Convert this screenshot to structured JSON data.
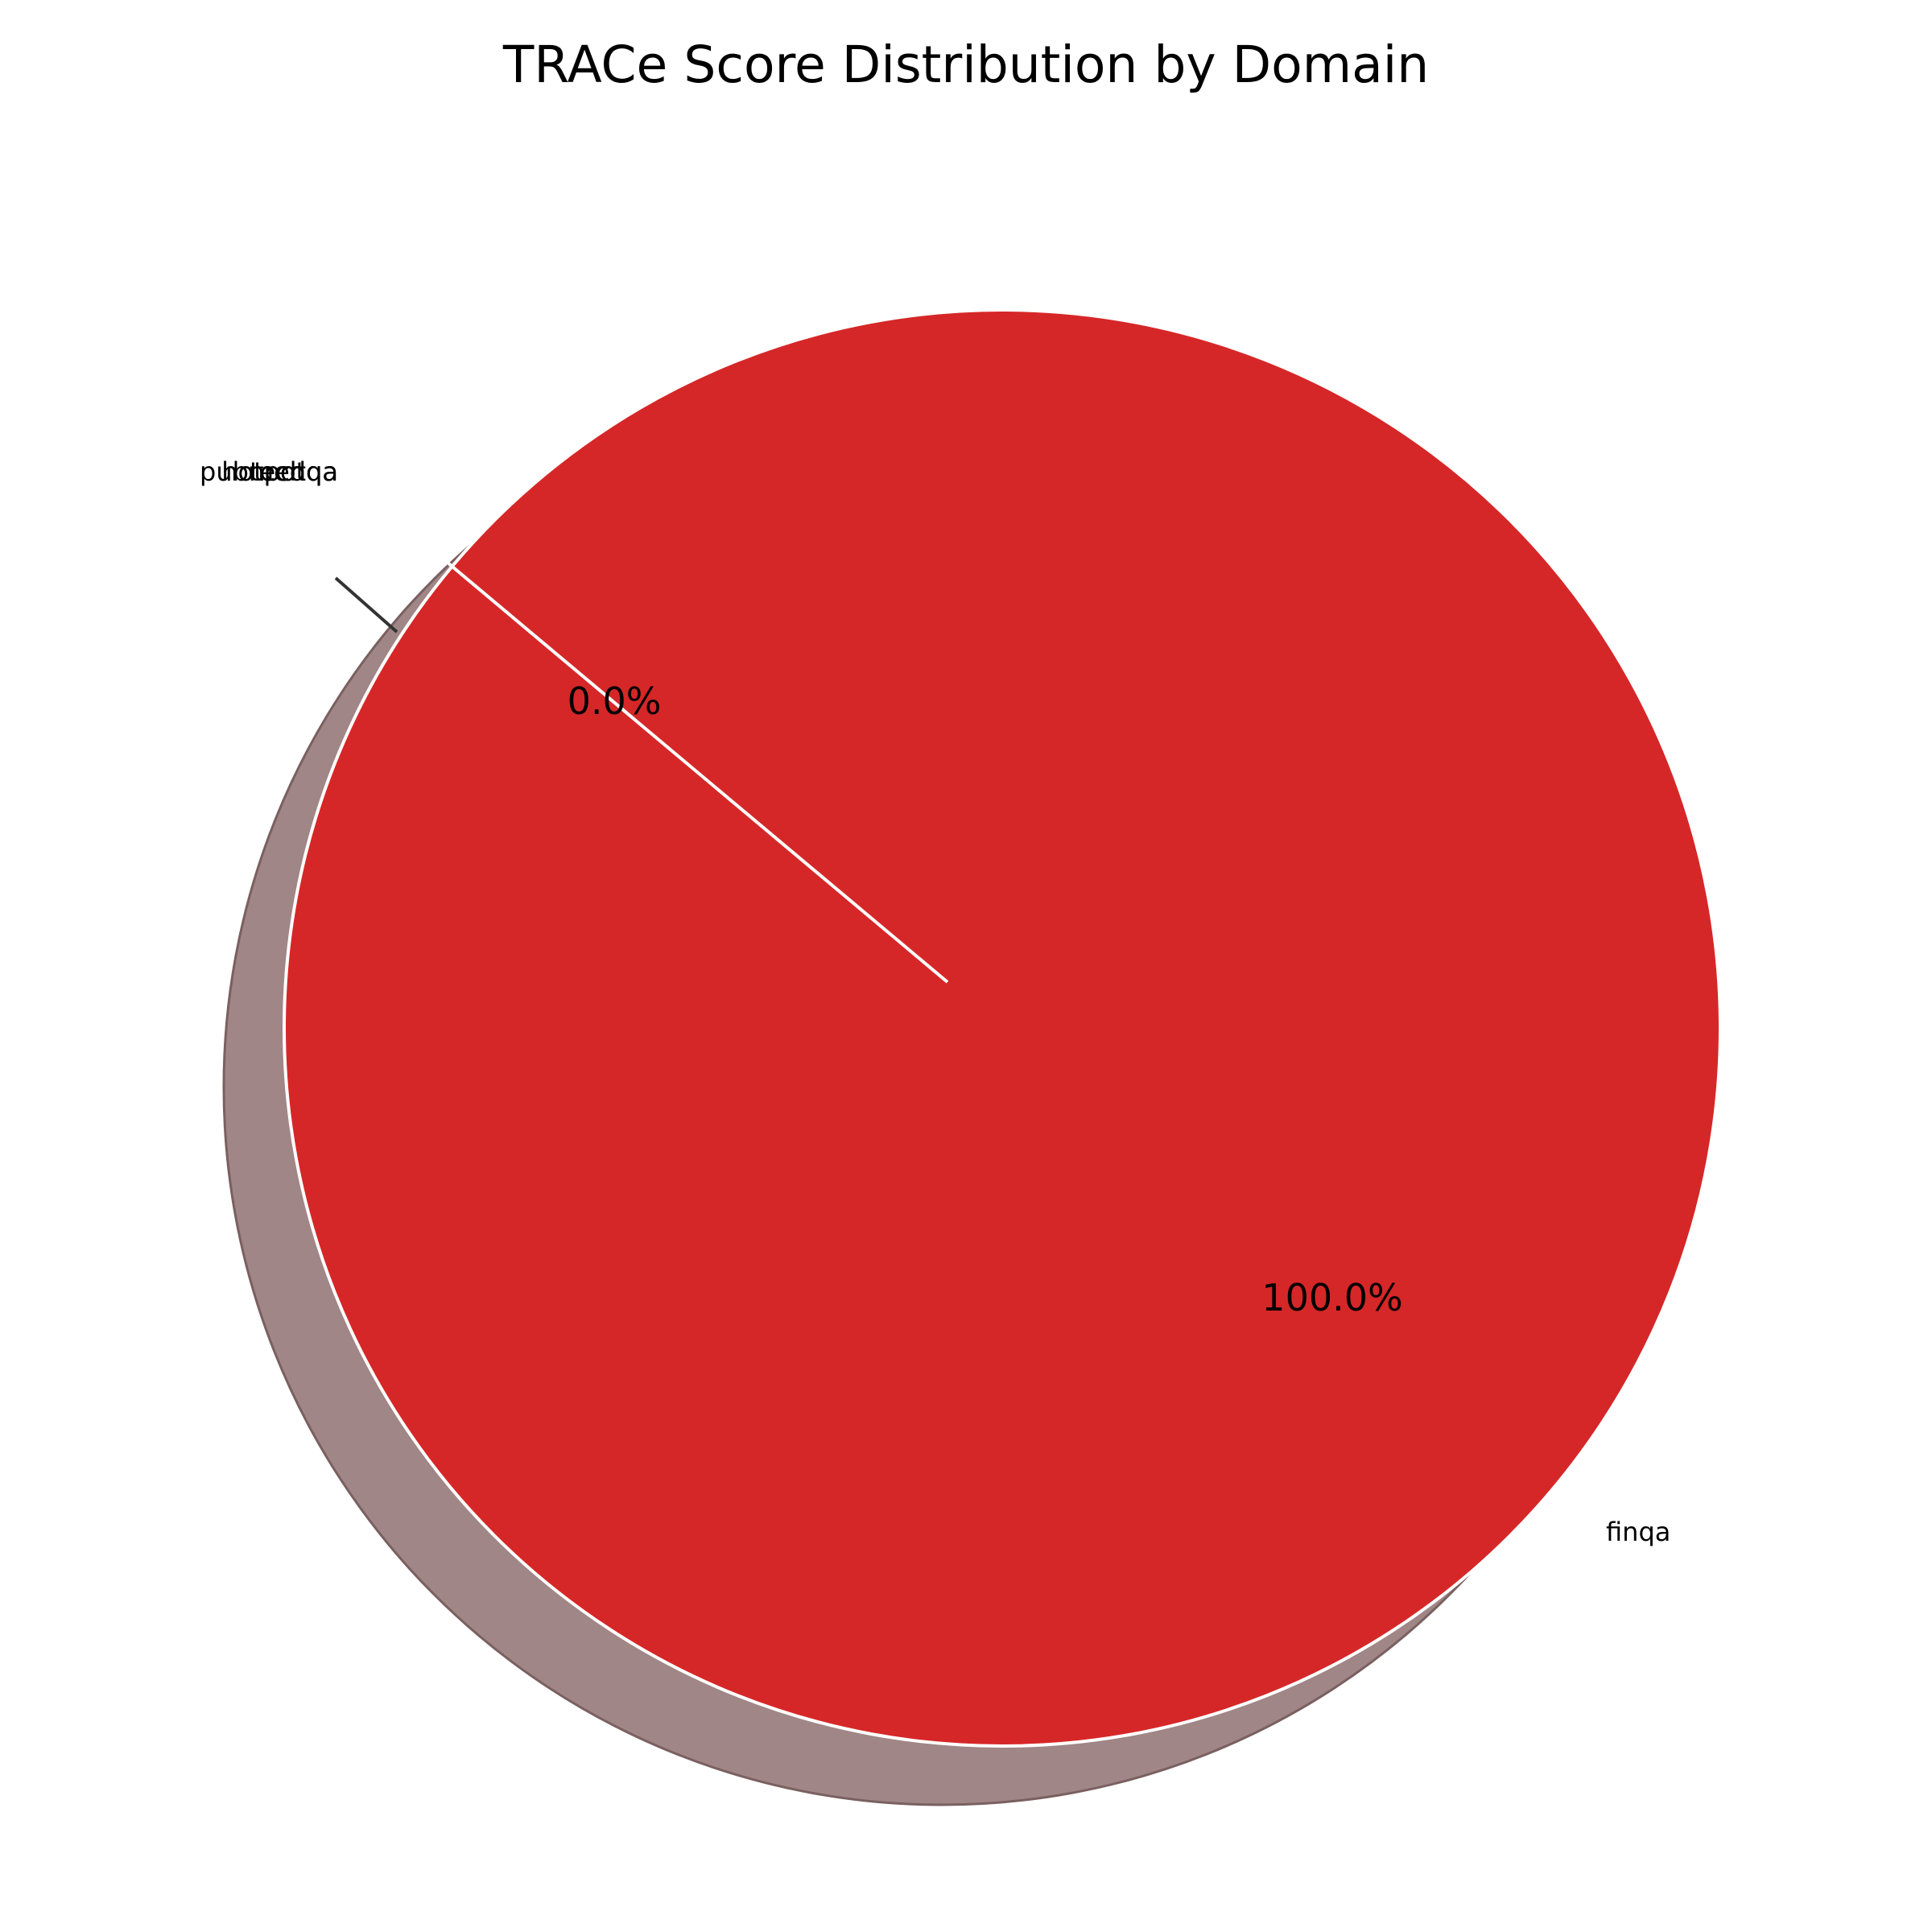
{
  "chart_data": {
    "type": "pie",
    "title": "TRACe Score Distribution by Domain",
    "labels": [
      "finqa",
      "hotpotqa",
      "pubmedqa",
      "techqa"
    ],
    "values": [
      100.0,
      0.0,
      0.0,
      0.0
    ],
    "percent_labels": [
      "100.0%",
      "0.0%",
      "",
      ""
    ],
    "colors": [
      "#d62728",
      "#1f77b4",
      "#ff7f0e",
      "#2ca02c"
    ],
    "shadow_color": "#a08686",
    "legend": "none",
    "shadow": true
  }
}
